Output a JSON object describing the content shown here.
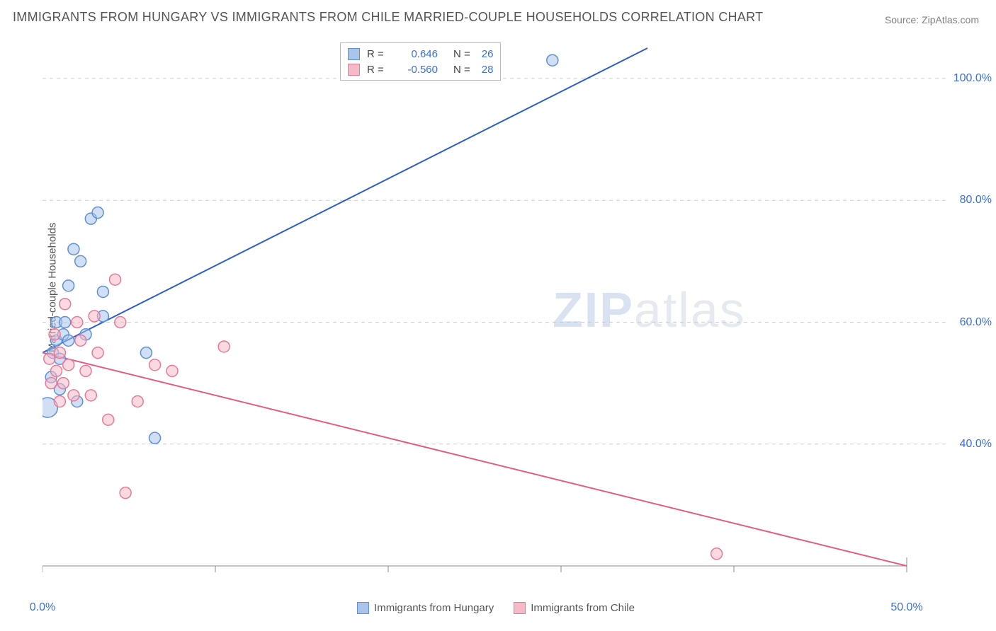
{
  "title": "IMMIGRANTS FROM HUNGARY VS IMMIGRANTS FROM CHILE MARRIED-COUPLE HOUSEHOLDS CORRELATION CHART",
  "source": "Source: ZipAtlas.com",
  "ylabel": "Married-couple Households",
  "watermark_bold": "ZIP",
  "watermark_light": "atlas",
  "chart": {
    "type": "scatter-with-regression",
    "background_color": "#ffffff",
    "grid_color": "#cccccc",
    "axis_color": "#888888",
    "xlim": [
      0,
      50
    ],
    "ylim": [
      20,
      105
    ],
    "xtick_labels": [
      "0.0%",
      "50.0%"
    ],
    "xtick_positions": [
      0,
      50
    ],
    "xtick_marks": [
      0,
      10,
      20,
      30,
      40,
      50
    ],
    "ytick_labels": [
      "40.0%",
      "60.0%",
      "80.0%",
      "100.0%"
    ],
    "ytick_positions": [
      40,
      60,
      80,
      100
    ],
    "point_radius": 8,
    "point_stroke_width": 1.5,
    "line_width": 2,
    "series": [
      {
        "name": "Immigrants from Hungary",
        "color_fill": "#a9c5ea",
        "color_stroke": "#5f8fd4",
        "line_color": "#2d5fc4",
        "R": "0.646",
        "N": "26",
        "regression": {
          "x1": 0,
          "y1": 55,
          "x2": 35,
          "y2": 105
        },
        "points": [
          {
            "x": 0.3,
            "y": 46,
            "r": 14
          },
          {
            "x": 0.5,
            "y": 51
          },
          {
            "x": 0.6,
            "y": 55
          },
          {
            "x": 0.8,
            "y": 57
          },
          {
            "x": 0.8,
            "y": 60
          },
          {
            "x": 1.0,
            "y": 54
          },
          {
            "x": 1.0,
            "y": 49
          },
          {
            "x": 1.2,
            "y": 58
          },
          {
            "x": 1.3,
            "y": 60
          },
          {
            "x": 1.5,
            "y": 57
          },
          {
            "x": 1.5,
            "y": 66
          },
          {
            "x": 1.8,
            "y": 72
          },
          {
            "x": 2.0,
            "y": 47
          },
          {
            "x": 2.2,
            "y": 70
          },
          {
            "x": 2.5,
            "y": 58
          },
          {
            "x": 2.8,
            "y": 77
          },
          {
            "x": 3.2,
            "y": 78
          },
          {
            "x": 3.5,
            "y": 65
          },
          {
            "x": 3.5,
            "y": 61
          },
          {
            "x": 6.0,
            "y": 55
          },
          {
            "x": 6.5,
            "y": 41
          },
          {
            "x": 29.5,
            "y": 103
          }
        ]
      },
      {
        "name": "Immigrants from Chile",
        "color_fill": "#f5b9c8",
        "color_stroke": "#e67a98",
        "line_color": "#e35a82",
        "R": "-0.560",
        "N": "28",
        "regression": {
          "x1": 0,
          "y1": 55,
          "x2": 50,
          "y2": 20
        },
        "points": [
          {
            "x": 0.4,
            "y": 54
          },
          {
            "x": 0.5,
            "y": 50
          },
          {
            "x": 0.7,
            "y": 58
          },
          {
            "x": 0.8,
            "y": 52
          },
          {
            "x": 1.0,
            "y": 47
          },
          {
            "x": 1.0,
            "y": 55
          },
          {
            "x": 1.2,
            "y": 50
          },
          {
            "x": 1.3,
            "y": 63
          },
          {
            "x": 1.5,
            "y": 53
          },
          {
            "x": 1.8,
            "y": 48
          },
          {
            "x": 2.0,
            "y": 60
          },
          {
            "x": 2.2,
            "y": 57
          },
          {
            "x": 2.5,
            "y": 52
          },
          {
            "x": 2.8,
            "y": 48
          },
          {
            "x": 3.0,
            "y": 61
          },
          {
            "x": 3.2,
            "y": 55
          },
          {
            "x": 3.8,
            "y": 44
          },
          {
            "x": 4.2,
            "y": 67
          },
          {
            "x": 4.5,
            "y": 60
          },
          {
            "x": 4.8,
            "y": 32
          },
          {
            "x": 5.5,
            "y": 47
          },
          {
            "x": 6.5,
            "y": 53
          },
          {
            "x": 7.5,
            "y": 52
          },
          {
            "x": 10.5,
            "y": 56
          },
          {
            "x": 39.0,
            "y": 22
          }
        ]
      }
    ],
    "legend_bottom": [
      {
        "label": "Immigrants from Hungary",
        "fill": "#a9c5ea",
        "stroke": "#5f8fd4"
      },
      {
        "label": "Immigrants from Chile",
        "fill": "#f5b9c8",
        "stroke": "#e67a98"
      }
    ]
  }
}
